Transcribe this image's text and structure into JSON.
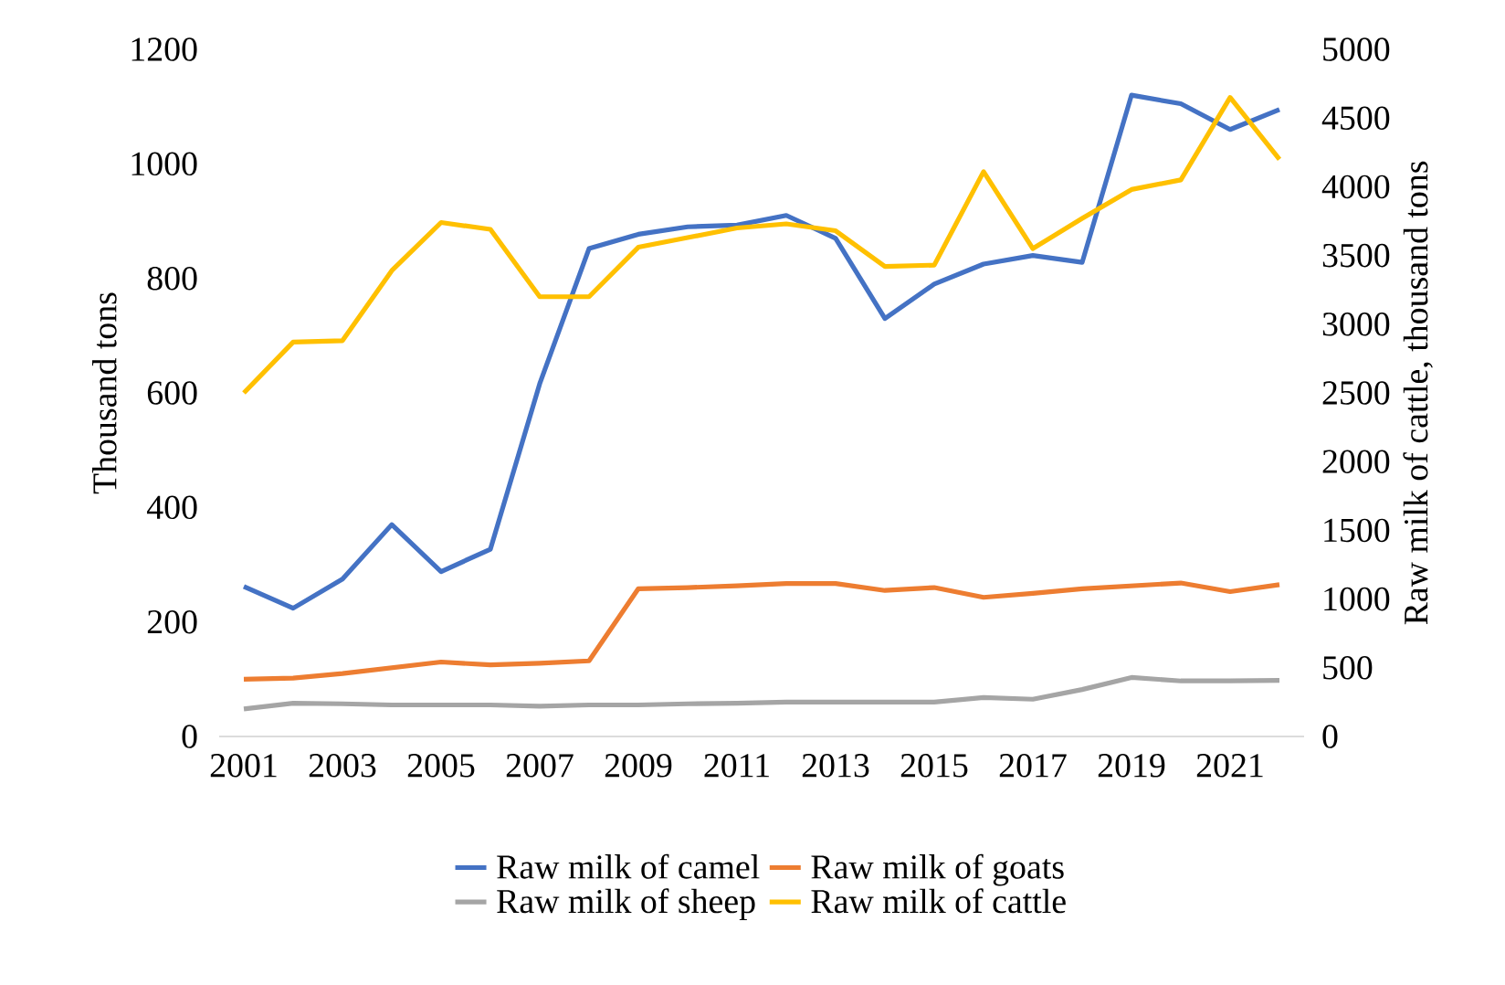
{
  "chart_data": {
    "type": "line",
    "categories": [
      "2001",
      null,
      "2003",
      null,
      "2005",
      null,
      "2007",
      null,
      "2009",
      null,
      "2011",
      null,
      "2013",
      null,
      "2015",
      null,
      "2017",
      null,
      "2019",
      null,
      "2021",
      null
    ],
    "ylabel": "Thousand tons",
    "y2label": "Raw milk of cattle, thousand tons",
    "ylim": [
      0,
      1200
    ],
    "yticks": [
      0,
      200,
      400,
      600,
      800,
      1000,
      1200
    ],
    "y2lim": [
      0,
      5000
    ],
    "y2ticks": [
      0,
      500,
      1000,
      1500,
      2000,
      2500,
      3000,
      3500,
      4000,
      4500,
      5000
    ],
    "legend": "bottom",
    "marker": "none",
    "line_style": "solid",
    "series": [
      {
        "name": "Raw milk of camel",
        "color": "#4472c4",
        "values": [
          262,
          224,
          275,
          370,
          288,
          327,
          616,
          852,
          877,
          890,
          893,
          910,
          870,
          730,
          790,
          825,
          840,
          828,
          1120,
          1105,
          1060,
          1095
        ]
      },
      {
        "name": "Raw milk of goats",
        "color": "#ed7d31",
        "values": [
          100,
          102,
          110,
          120,
          130,
          125,
          128,
          132,
          258,
          260,
          263,
          267,
          267,
          255,
          260,
          243,
          250,
          258,
          263,
          268,
          253,
          265
        ]
      },
      {
        "name": "Raw milk of sheep",
        "color": "#a5a5a5",
        "values": [
          48,
          58,
          57,
          55,
          55,
          55,
          53,
          55,
          55,
          57,
          58,
          60,
          60,
          60,
          60,
          68,
          65,
          82,
          103,
          97,
          97,
          98
        ]
      },
      {
        "name": "Raw milk of cattle",
        "color": "#ffc000",
        "axis": "y2",
        "values": [
          2500,
          2870,
          2880,
          3390,
          3740,
          3690,
          3200,
          3200,
          3560,
          3630,
          3700,
          3730,
          3680,
          3420,
          3430,
          4110,
          3550,
          3770,
          3980,
          4050,
          4650,
          4200
        ]
      }
    ]
  }
}
